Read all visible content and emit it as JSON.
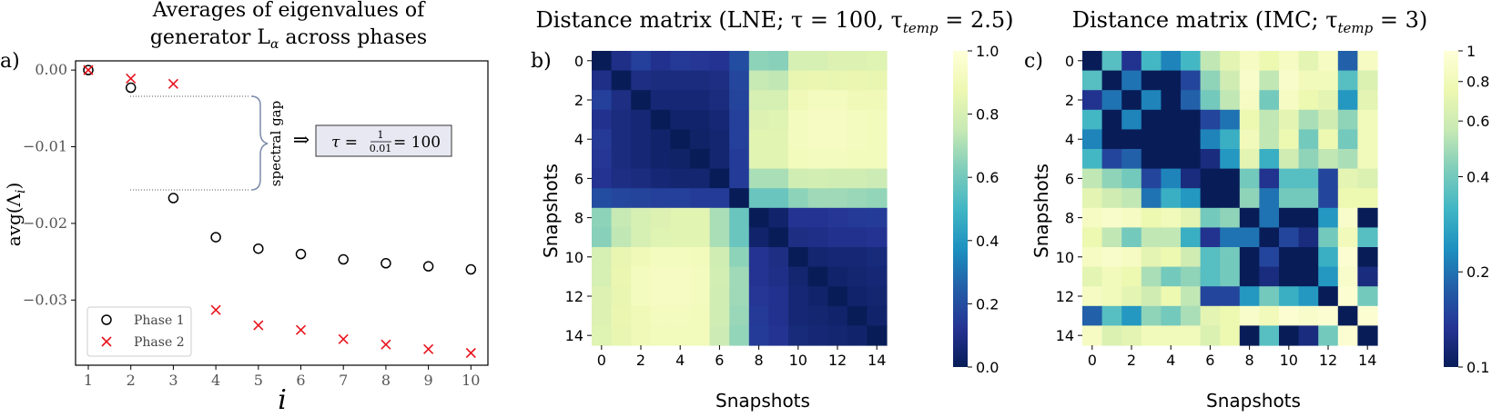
{
  "chart_data": [
    {
      "type": "scatter",
      "panel_label": "a)",
      "title_line1": "Averages of eigenvalues of",
      "title_line2": "generator L",
      "title_sub": "α",
      "title_line2_end": " across phases",
      "xlabel": "i",
      "ylabel": "avg(Λ",
      "ylabel_sub": "i",
      "ylabel_end": ")",
      "xlim": [
        0.7,
        10.4
      ],
      "ylim": [
        -0.0385,
        0.0012
      ],
      "xticks": [
        1,
        2,
        3,
        4,
        5,
        6,
        7,
        8,
        9,
        10
      ],
      "yticks": [
        0.0,
        -0.01,
        -0.02,
        -0.03
      ],
      "ytick_labels": [
        "0.00",
        "−0.01",
        "−0.02",
        "−0.03"
      ],
      "series": [
        {
          "name": "Phase 1",
          "marker": "circle",
          "color": "#000000",
          "x": [
            1,
            2,
            3,
            4,
            5,
            6,
            7,
            8,
            9,
            10
          ],
          "y": [
            0.0,
            -0.0023,
            -0.0167,
            -0.0218,
            -0.0233,
            -0.024,
            -0.0247,
            -0.0252,
            -0.0256,
            -0.026
          ]
        },
        {
          "name": "Phase 2",
          "marker": "x",
          "color": "#e8141e",
          "x": [
            1,
            2,
            3,
            4,
            5,
            6,
            7,
            8,
            9,
            10
          ],
          "y": [
            0.0,
            -0.0011,
            -0.0018,
            -0.0313,
            -0.0333,
            -0.0339,
            -0.0351,
            -0.0358,
            -0.0364,
            -0.0369
          ]
        }
      ],
      "legend": "bottom-left",
      "annotation": {
        "brace_label": "spectral gap",
        "arrow": "⇒",
        "tau_text": "τ = ",
        "frac_num": "1",
        "frac_den": "0.01",
        "tau_end": " = 100"
      }
    },
    {
      "type": "heatmap",
      "panel_label": "b)",
      "title": "Distance matrix (LNE; τ = 100, τ",
      "title_sub": "temp",
      "title_end": " = 2.5)",
      "xlabel": "Snapshots",
      "ylabel": "Snapshots",
      "xticks": [
        0,
        2,
        4,
        6,
        8,
        10,
        12,
        14
      ],
      "yticks": [
        0,
        2,
        4,
        6,
        8,
        10,
        12,
        14
      ],
      "colorbar_ticks": [
        "0.0",
        "0.2",
        "0.4",
        "0.6",
        "0.8",
        "1.0"
      ],
      "colorbar_values": [
        0,
        0.2,
        0.4,
        0.6,
        0.8,
        1.0
      ],
      "colorbar_scale": "linear",
      "vmin": 0,
      "vmax": 1,
      "colormap": "YlGnBu_r",
      "matrix": [
        [
          0.0,
          0.1,
          0.16,
          0.11,
          0.14,
          0.13,
          0.12,
          0.2,
          0.65,
          0.64,
          0.8,
          0.8,
          0.82,
          0.82,
          0.83
        ],
        [
          0.1,
          0.0,
          0.09,
          0.08,
          0.08,
          0.08,
          0.09,
          0.18,
          0.75,
          0.74,
          0.86,
          0.87,
          0.86,
          0.87,
          0.86
        ],
        [
          0.16,
          0.09,
          0.0,
          0.06,
          0.06,
          0.06,
          0.08,
          0.17,
          0.8,
          0.8,
          0.9,
          0.92,
          0.92,
          0.9,
          0.9
        ],
        [
          0.11,
          0.08,
          0.06,
          0.0,
          0.04,
          0.04,
          0.06,
          0.16,
          0.82,
          0.83,
          0.92,
          0.93,
          0.93,
          0.92,
          0.91
        ],
        [
          0.14,
          0.08,
          0.06,
          0.04,
          0.0,
          0.03,
          0.05,
          0.16,
          0.84,
          0.84,
          0.92,
          0.93,
          0.93,
          0.92,
          0.91
        ],
        [
          0.13,
          0.08,
          0.06,
          0.04,
          0.03,
          0.0,
          0.05,
          0.15,
          0.84,
          0.84,
          0.91,
          0.92,
          0.92,
          0.91,
          0.91
        ],
        [
          0.12,
          0.09,
          0.08,
          0.06,
          0.05,
          0.05,
          0.0,
          0.15,
          0.7,
          0.7,
          0.78,
          0.79,
          0.78,
          0.78,
          0.77
        ],
        [
          0.2,
          0.18,
          0.17,
          0.16,
          0.16,
          0.15,
          0.15,
          0.0,
          0.58,
          0.58,
          0.65,
          0.68,
          0.68,
          0.67,
          0.66
        ],
        [
          0.65,
          0.75,
          0.8,
          0.82,
          0.84,
          0.84,
          0.7,
          0.58,
          0.0,
          0.04,
          0.12,
          0.12,
          0.13,
          0.14,
          0.15
        ],
        [
          0.64,
          0.74,
          0.8,
          0.83,
          0.84,
          0.84,
          0.7,
          0.58,
          0.04,
          0.0,
          0.09,
          0.1,
          0.11,
          0.11,
          0.12
        ],
        [
          0.8,
          0.86,
          0.9,
          0.92,
          0.92,
          0.91,
          0.78,
          0.65,
          0.12,
          0.09,
          0.0,
          0.05,
          0.06,
          0.06,
          0.07
        ],
        [
          0.8,
          0.87,
          0.92,
          0.93,
          0.93,
          0.92,
          0.79,
          0.68,
          0.12,
          0.1,
          0.05,
          0.0,
          0.04,
          0.05,
          0.06
        ],
        [
          0.82,
          0.86,
          0.92,
          0.93,
          0.93,
          0.92,
          0.78,
          0.68,
          0.13,
          0.11,
          0.06,
          0.04,
          0.0,
          0.04,
          0.05
        ],
        [
          0.82,
          0.87,
          0.9,
          0.92,
          0.92,
          0.91,
          0.78,
          0.67,
          0.14,
          0.11,
          0.06,
          0.05,
          0.04,
          0.0,
          0.04
        ],
        [
          0.83,
          0.86,
          0.9,
          0.91,
          0.91,
          0.91,
          0.77,
          0.66,
          0.15,
          0.12,
          0.07,
          0.06,
          0.05,
          0.04,
          0.0
        ]
      ]
    },
    {
      "type": "heatmap",
      "panel_label": "c)",
      "title": "Distance matrix (IMC; τ",
      "title_sub": "temp",
      "title_end": " = 3)",
      "xlabel": "Snapshots",
      "ylabel": "Snapshots",
      "xticks": [
        0,
        2,
        4,
        6,
        8,
        10,
        12,
        14
      ],
      "yticks": [
        0,
        2,
        4,
        6,
        8,
        10,
        12,
        14
      ],
      "colorbar_ticks": [
        "0.1",
        "0.2",
        "0.4",
        "0.6",
        "0.8",
        "1"
      ],
      "colorbar_values": [
        0.1,
        0.2,
        0.4,
        0.6,
        0.8,
        1.0
      ],
      "colorbar_scale": "log",
      "vmin": 0.1,
      "vmax": 1,
      "colormap": "YlGnBu_r",
      "matrix": [
        [
          0.1,
          0.35,
          0.13,
          0.32,
          0.22,
          0.32,
          0.55,
          0.7,
          0.85,
          0.75,
          0.85,
          0.7,
          0.85,
          0.18,
          0.85
        ],
        [
          0.35,
          0.1,
          0.2,
          0.1,
          0.1,
          0.15,
          0.45,
          0.6,
          0.9,
          0.55,
          0.9,
          0.8,
          0.8,
          0.35,
          0.65
        ],
        [
          0.13,
          0.2,
          0.1,
          0.22,
          0.1,
          0.18,
          0.4,
          0.55,
          0.85,
          0.4,
          0.85,
          0.75,
          0.7,
          0.25,
          0.7
        ],
        [
          0.32,
          0.1,
          0.22,
          0.1,
          0.1,
          0.1,
          0.15,
          0.2,
          0.75,
          0.55,
          0.7,
          0.5,
          0.6,
          0.45,
          0.8
        ],
        [
          0.22,
          0.1,
          0.1,
          0.1,
          0.1,
          0.1,
          0.22,
          0.3,
          0.8,
          0.55,
          0.75,
          0.4,
          0.75,
          0.4,
          0.8
        ],
        [
          0.32,
          0.15,
          0.18,
          0.1,
          0.1,
          0.1,
          0.12,
          0.25,
          0.7,
          0.3,
          0.6,
          0.45,
          0.55,
          0.5,
          0.8
        ],
        [
          0.55,
          0.45,
          0.4,
          0.15,
          0.22,
          0.12,
          0.1,
          0.1,
          0.4,
          0.13,
          0.35,
          0.35,
          0.15,
          0.7,
          0.65
        ],
        [
          0.7,
          0.6,
          0.55,
          0.2,
          0.3,
          0.25,
          0.1,
          0.1,
          0.45,
          0.2,
          0.4,
          0.4,
          0.15,
          0.75,
          0.75
        ],
        [
          0.85,
          0.9,
          0.85,
          0.75,
          0.8,
          0.7,
          0.4,
          0.45,
          0.1,
          0.2,
          0.1,
          0.1,
          0.25,
          0.9,
          0.1
        ],
        [
          0.75,
          0.55,
          0.4,
          0.55,
          0.55,
          0.3,
          0.13,
          0.2,
          0.2,
          0.1,
          0.15,
          0.12,
          0.4,
          0.8,
          0.35
        ],
        [
          0.85,
          0.9,
          0.85,
          0.7,
          0.75,
          0.6,
          0.35,
          0.4,
          0.1,
          0.15,
          0.1,
          0.1,
          0.3,
          0.95,
          0.1
        ],
        [
          0.7,
          0.8,
          0.75,
          0.5,
          0.4,
          0.45,
          0.35,
          0.4,
          0.1,
          0.12,
          0.1,
          0.1,
          0.25,
          0.9,
          0.12
        ],
        [
          0.85,
          0.8,
          0.7,
          0.6,
          0.75,
          0.55,
          0.15,
          0.15,
          0.25,
          0.4,
          0.3,
          0.25,
          0.1,
          0.95,
          0.4
        ],
        [
          0.18,
          0.35,
          0.25,
          0.45,
          0.4,
          0.5,
          0.7,
          0.75,
          0.9,
          0.8,
          0.95,
          0.9,
          0.95,
          0.1,
          0.95
        ],
        [
          0.85,
          0.65,
          0.7,
          0.8,
          0.8,
          0.8,
          0.65,
          0.75,
          0.1,
          0.35,
          0.1,
          0.12,
          0.4,
          0.95,
          0.1
        ]
      ]
    }
  ]
}
